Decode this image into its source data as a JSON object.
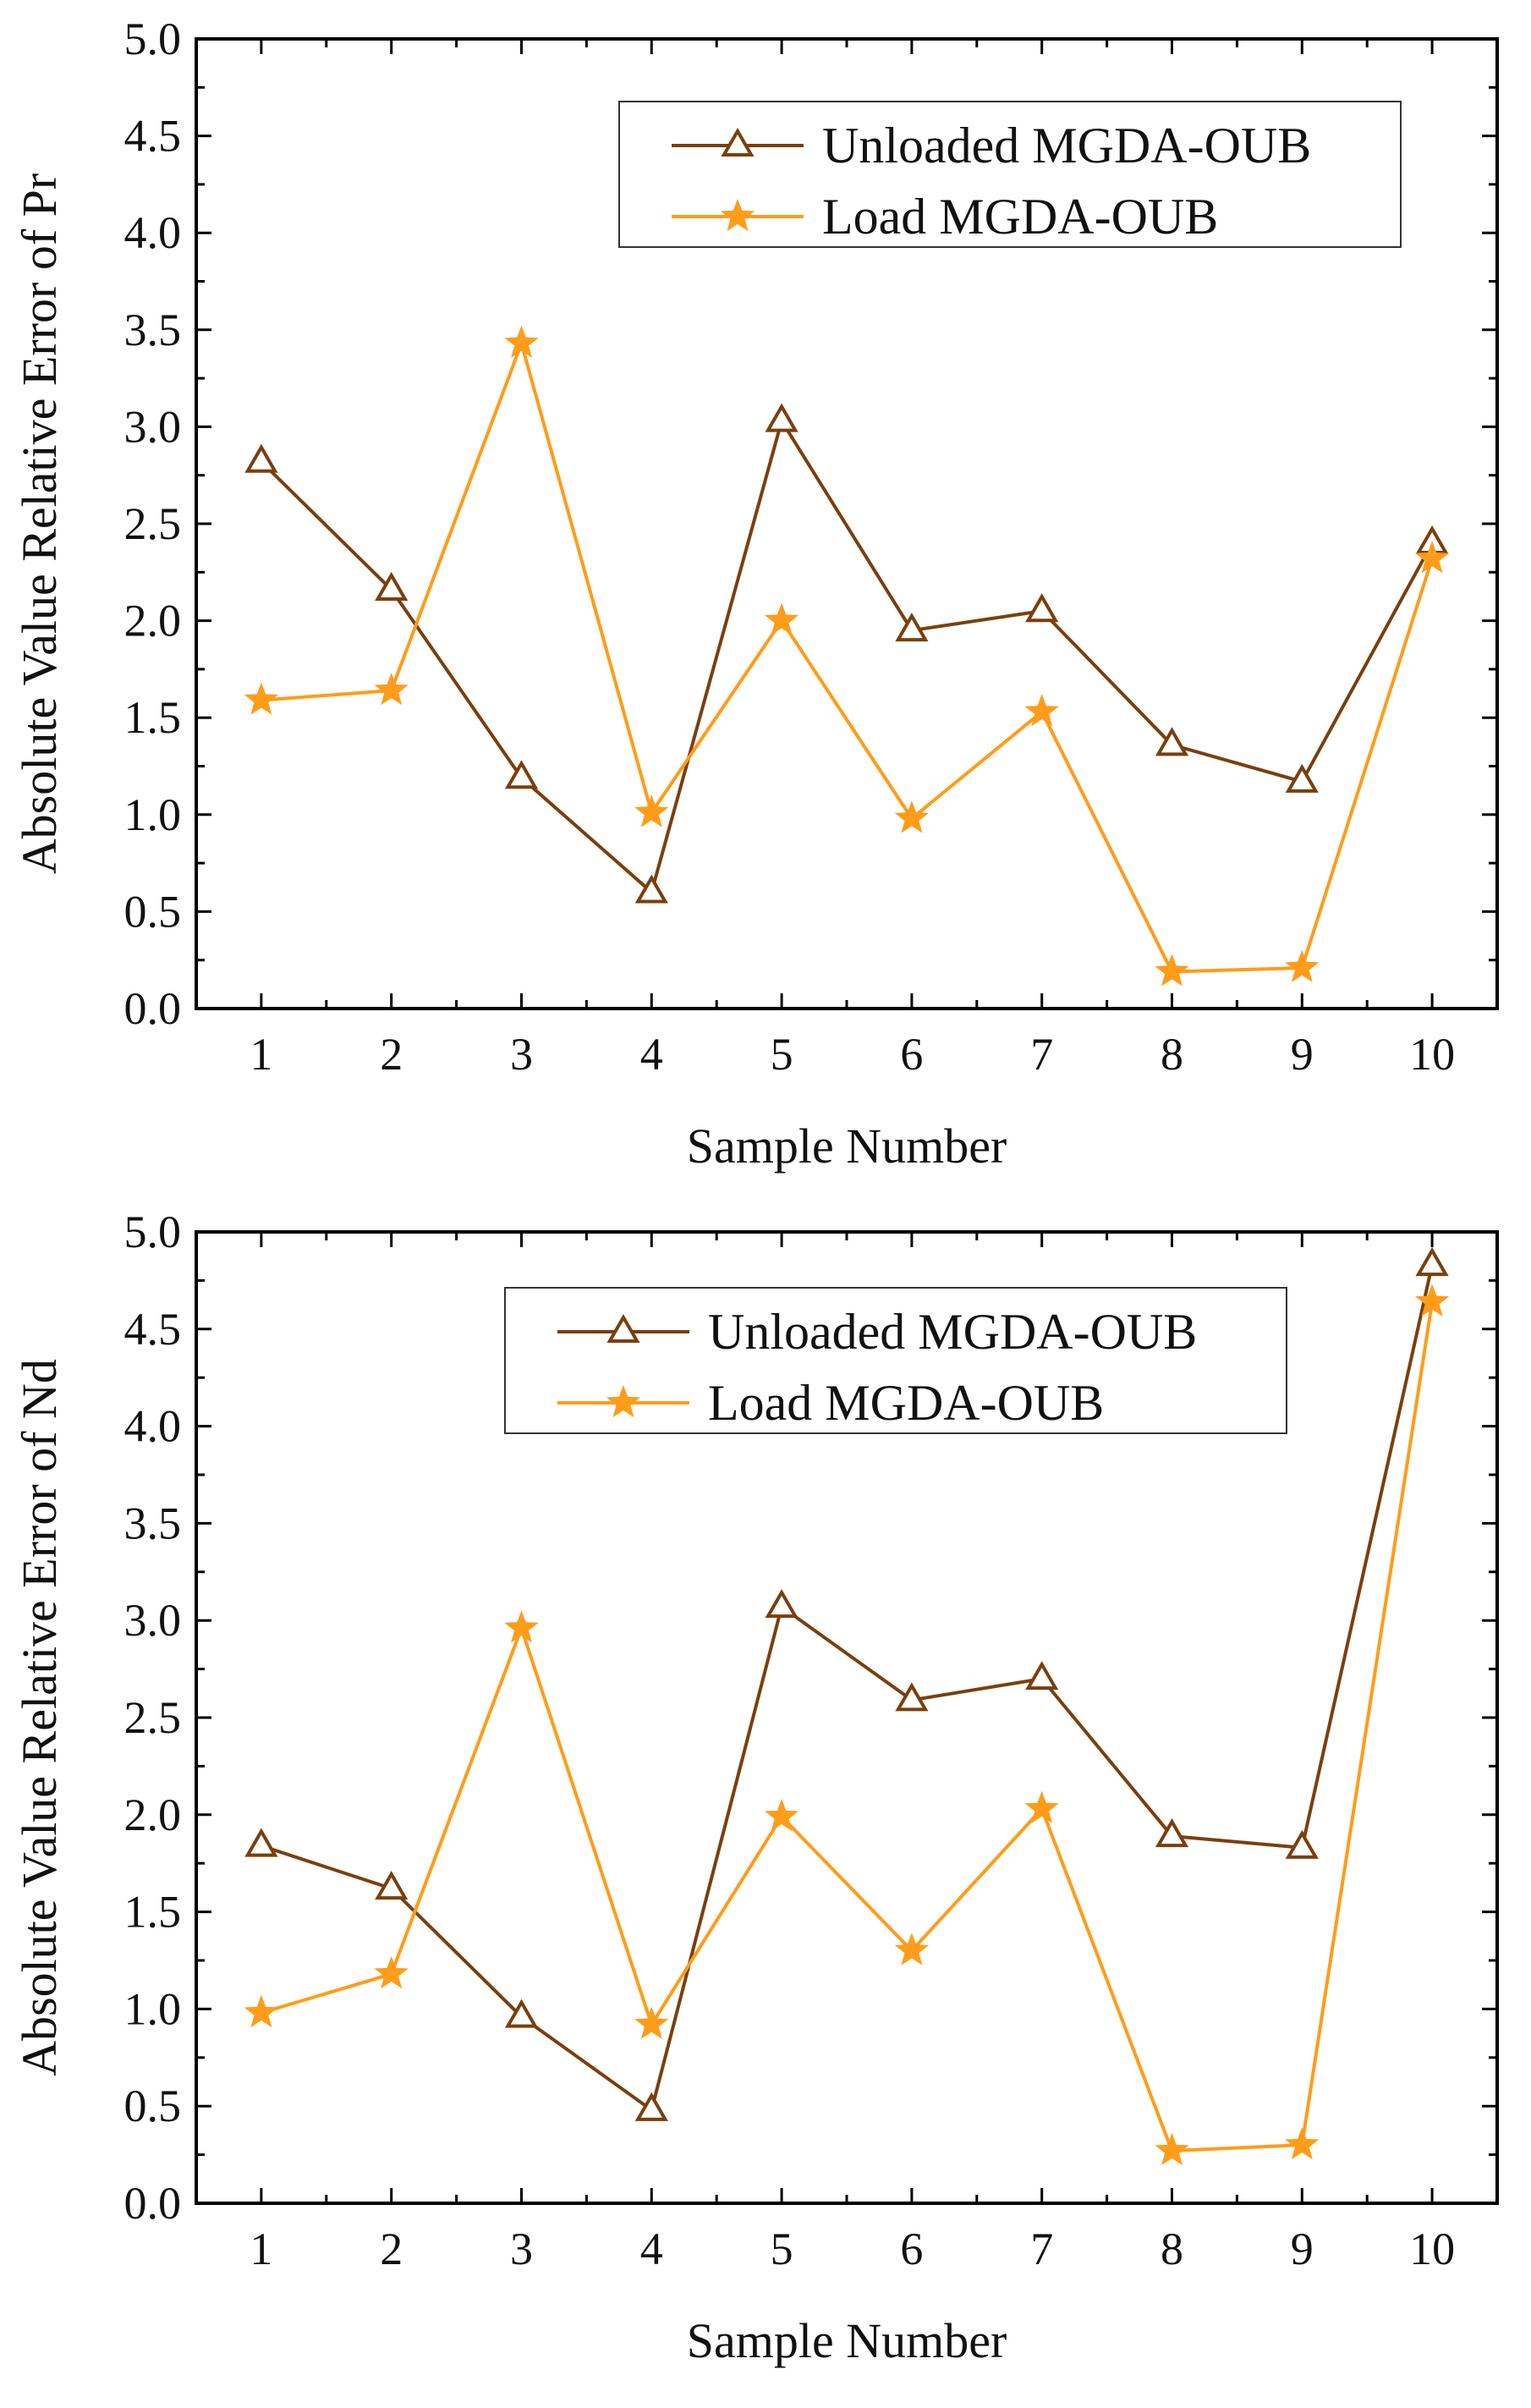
{
  "colors": {
    "unloaded": "#7a3f0d",
    "load": "#ff9c1a",
    "axis": "#000000"
  },
  "chart_data": [
    {
      "type": "line",
      "title": "",
      "xlabel": "Sample Number",
      "ylabel": "Absolute Value Relative Error of Pr",
      "x": [
        1,
        2,
        3,
        4,
        5,
        6,
        7,
        8,
        9,
        10
      ],
      "xticks": [
        "1",
        "2",
        "3",
        "4",
        "5",
        "6",
        "7",
        "8",
        "9",
        "10"
      ],
      "xlim": [
        0.5,
        10.5
      ],
      "ylim": [
        0,
        5
      ],
      "yticks": [
        "0.0",
        "0.5",
        "1.0",
        "1.5",
        "2.0",
        "2.5",
        "3.0",
        "3.5",
        "4.0",
        "4.5",
        "5.0"
      ],
      "legend_position": "top-right",
      "grid": false,
      "series": [
        {
          "name": "Unloaded MGDA-OUB",
          "marker": "triangle",
          "color": "#7a3f0d",
          "values": [
            2.82,
            2.16,
            1.19,
            0.6,
            3.03,
            1.95,
            2.05,
            1.36,
            1.17,
            2.4
          ]
        },
        {
          "name": "Load MGDA-OUB",
          "marker": "star",
          "color": "#ff9c1a",
          "values": [
            1.59,
            1.64,
            3.43,
            1.01,
            2.0,
            0.98,
            1.53,
            0.19,
            0.21,
            2.32
          ]
        }
      ]
    },
    {
      "type": "line",
      "title": "",
      "xlabel": "Sample Number",
      "ylabel": "Absolute Value Relative Error of Nd",
      "x": [
        1,
        2,
        3,
        4,
        5,
        6,
        7,
        8,
        9,
        10
      ],
      "xticks": [
        "1",
        "2",
        "3",
        "4",
        "5",
        "6",
        "7",
        "8",
        "9",
        "10"
      ],
      "xlim": [
        0.5,
        10.5
      ],
      "ylim": [
        0,
        5
      ],
      "yticks": [
        "0.0",
        "0.5",
        "1.0",
        "1.5",
        "2.0",
        "2.5",
        "3.0",
        "3.5",
        "4.0",
        "4.5",
        "5.0"
      ],
      "legend_position": "top-center",
      "grid": false,
      "series": [
        {
          "name": "Unloaded MGDA-OUB",
          "marker": "triangle",
          "color": "#7a3f0d",
          "values": [
            1.84,
            1.62,
            0.96,
            0.48,
            3.07,
            2.59,
            2.7,
            1.89,
            1.83,
            4.83
          ]
        },
        {
          "name": "Load MGDA-OUB",
          "marker": "star",
          "color": "#ff9c1a",
          "values": [
            0.98,
            1.18,
            2.96,
            0.92,
            1.99,
            1.3,
            2.03,
            0.27,
            0.3,
            4.64
          ]
        }
      ]
    }
  ]
}
